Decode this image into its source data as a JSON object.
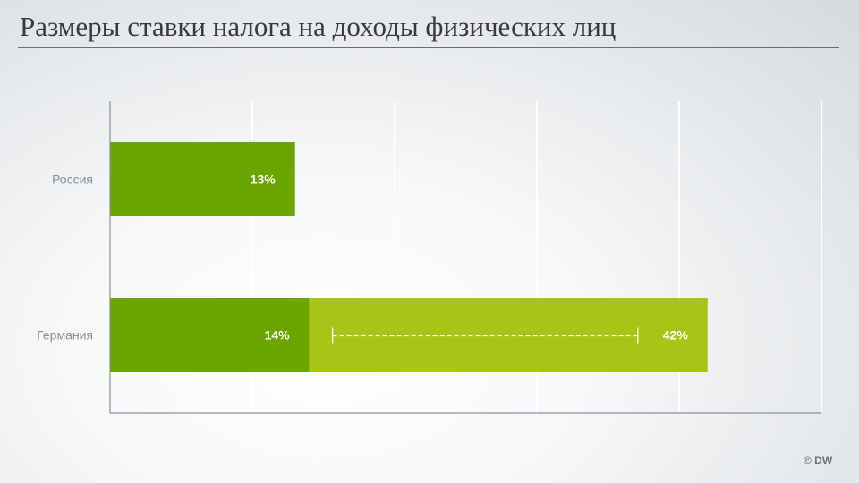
{
  "header": {
    "title": "Размеры ставки налога на доходы физических лиц"
  },
  "credit": "© DW",
  "colors": {
    "base": "#6ca400",
    "range": "#a7c516",
    "grid": "#ffffff",
    "axis": "#8c9196"
  },
  "chart_data": {
    "type": "bar",
    "orientation": "horizontal",
    "categories": [
      "Россия",
      "Германия"
    ],
    "xlim": [
      0,
      50
    ],
    "gridlines": [
      10,
      20,
      30,
      40,
      50
    ],
    "grid": true,
    "bars": [
      {
        "category": "Россия",
        "start": 0,
        "end": 13,
        "color": "#6ca400",
        "label": "13%"
      },
      {
        "category": "Германия",
        "start": 0,
        "end": 14,
        "color": "#6ca400",
        "label": "14%"
      },
      {
        "category": "Германия",
        "start": 14,
        "end": 42,
        "color": "#a7c516",
        "label": "42%"
      }
    ],
    "range_marker": {
      "category": "Германия",
      "from": 14,
      "to": 42
    }
  }
}
